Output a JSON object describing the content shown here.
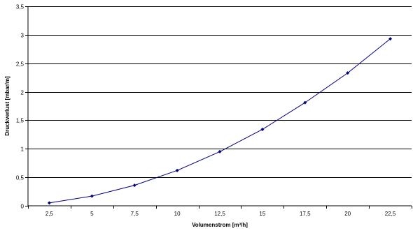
{
  "chart_data": {
    "type": "line",
    "xlabel": "Volumenstrom [m³/h]",
    "ylabel": "Druckverlust [mbar/m]",
    "x_tick_labels": [
      "2,5",
      "5",
      "7,5",
      "10",
      "12,5",
      "15",
      "17,5",
      "20",
      "22,5"
    ],
    "y_tick_labels": [
      "0",
      "0,5",
      "1",
      "1,5",
      "2",
      "2,5",
      "3",
      "3,5"
    ],
    "y_ticks": [
      0,
      0.5,
      1,
      1.5,
      2,
      2.5,
      3,
      3.5
    ],
    "ylim": [
      0,
      3.5
    ],
    "grid": "horizontal",
    "legend": "none",
    "series": [
      {
        "color": "#000080",
        "marker": "diamond",
        "x": [
          2.5,
          5,
          7.5,
          10,
          12.5,
          15,
          17.5,
          20,
          22.5
        ],
        "y": [
          0.05,
          0.17,
          0.36,
          0.62,
          0.95,
          1.34,
          1.81,
          2.33,
          2.93
        ]
      }
    ]
  }
}
